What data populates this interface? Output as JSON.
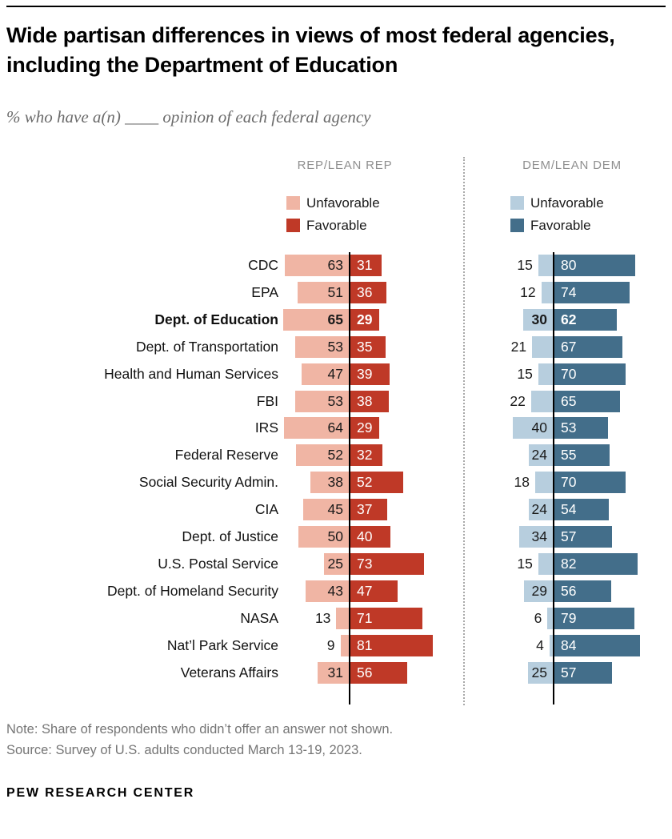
{
  "title": "Wide partisan differences in views of most federal agencies, including the Department of Education",
  "subtitle": "% who have a(n) ____ opinion of each federal agency",
  "panels": {
    "rep": {
      "header": "REP/LEAN REP",
      "legend": [
        "Unfavorable",
        "Favorable"
      ]
    },
    "dem": {
      "header": "DEM/LEAN DEM",
      "legend": [
        "Unfavorable",
        "Favorable"
      ]
    }
  },
  "colors": {
    "rep_unfavorable": "#f0b5a4",
    "rep_favorable": "#bf3927",
    "dem_unfavorable": "#b7cede",
    "dem_favorable": "#436e8a",
    "axis": "#000000",
    "divider": "#a8a8a8"
  },
  "chart_data": {
    "type": "bar",
    "unit": "%",
    "orientation": "horizontal-diverging",
    "axis_range": [
      0,
      100
    ],
    "grid": false,
    "emphasized_category": "Dept. of Education",
    "categories": [
      "CDC",
      "EPA",
      "Dept. of Education",
      "Dept. of Transportation",
      "Health and Human Services",
      "FBI",
      "IRS",
      "Federal Reserve",
      "Social Security Admin.",
      "CIA",
      "Dept. of Justice",
      "U.S. Postal Service",
      "Dept. of Homeland Security",
      "NASA",
      "Nat’l Park Service",
      "Veterans Affairs"
    ],
    "series": [
      {
        "name": "Rep/Lean Rep — Unfavorable",
        "key": "rep_unfavorable",
        "values": [
          63,
          51,
          65,
          53,
          47,
          53,
          64,
          52,
          38,
          45,
          50,
          25,
          43,
          13,
          9,
          31
        ]
      },
      {
        "name": "Rep/Lean Rep — Favorable",
        "key": "rep_favorable",
        "values": [
          31,
          36,
          29,
          35,
          39,
          38,
          29,
          32,
          52,
          37,
          40,
          73,
          47,
          71,
          81,
          56
        ]
      },
      {
        "name": "Dem/Lean Dem — Unfavorable",
        "key": "dem_unfavorable",
        "values": [
          15,
          12,
          30,
          21,
          15,
          22,
          40,
          24,
          18,
          24,
          34,
          15,
          29,
          6,
          4,
          25
        ]
      },
      {
        "name": "Dem/Lean Dem — Favorable",
        "key": "dem_favorable",
        "values": [
          80,
          74,
          62,
          67,
          70,
          65,
          53,
          55,
          70,
          54,
          57,
          82,
          56,
          79,
          84,
          57
        ]
      }
    ]
  },
  "note": "Note: Share of respondents who didn’t offer an answer not shown.",
  "source": "Source: Survey of U.S. adults conducted March 13-19, 2023.",
  "footer": "PEW RESEARCH CENTER"
}
